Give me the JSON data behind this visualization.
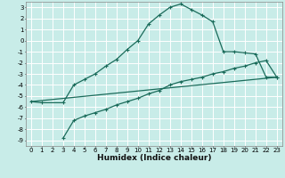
{
  "title": "",
  "xlabel": "Humidex (Indice chaleur)",
  "bg_color": "#c8ece8",
  "grid_color": "#ffffff",
  "line_color": "#1a6b5a",
  "xlim": [
    -0.5,
    23.5
  ],
  "ylim": [
    -9.5,
    3.5
  ],
  "xticks": [
    0,
    1,
    2,
    3,
    4,
    5,
    6,
    7,
    8,
    9,
    10,
    11,
    12,
    13,
    14,
    15,
    16,
    17,
    18,
    19,
    20,
    21,
    22,
    23
  ],
  "yticks": [
    3,
    2,
    1,
    0,
    -1,
    -2,
    -3,
    -4,
    -5,
    -6,
    -7,
    -8,
    -9
  ],
  "curve1_x": [
    0,
    1,
    3,
    4,
    5,
    6,
    7,
    8,
    9,
    10,
    11,
    12,
    13,
    14,
    15,
    16,
    17,
    18,
    19,
    20,
    21,
    22,
    23
  ],
  "curve1_y": [
    -5.5,
    -5.6,
    -5.6,
    -4.0,
    -3.5,
    -3.0,
    -2.3,
    -1.7,
    -0.8,
    0.0,
    1.5,
    2.3,
    3.0,
    3.3,
    2.8,
    2.3,
    1.7,
    -1.0,
    -1.0,
    -1.1,
    -1.2,
    -3.3,
    -3.3
  ],
  "curve2_x": [
    3,
    4,
    5,
    6,
    7,
    8,
    9,
    10,
    11,
    12,
    13,
    14,
    15,
    16,
    17,
    18,
    19,
    20,
    21,
    22,
    23
  ],
  "curve2_y": [
    -8.8,
    -7.2,
    -6.8,
    -6.5,
    -6.2,
    -5.8,
    -5.5,
    -5.2,
    -4.8,
    -4.5,
    -4.0,
    -3.7,
    -3.5,
    -3.3,
    -3.0,
    -2.8,
    -2.5,
    -2.3,
    -2.0,
    -1.8,
    -3.3
  ],
  "curve3_x": [
    0,
    23
  ],
  "curve3_y": [
    -5.5,
    -3.3
  ],
  "xlabel_fontsize": 6.5,
  "tick_fontsize": 5.0
}
